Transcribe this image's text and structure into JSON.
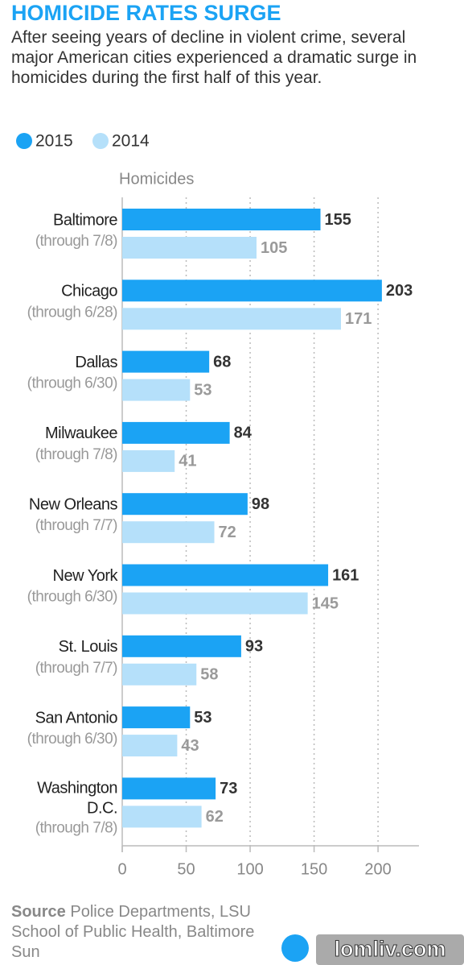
{
  "header": {
    "title": "HOMICIDE RATES SURGE",
    "subtitle": "After seeing years of decline in violent crime, several major American cities experienced a dramatic surge in homicides during the first half of this year."
  },
  "chart_data": {
    "type": "hbar",
    "x_label": "Homicides",
    "categories": [
      "Baltimore",
      "Chicago",
      "Dallas",
      "Milwaukee",
      "New Orleans",
      "New York",
      "St. Louis",
      "San Antonio",
      "Washington D.C."
    ],
    "category_notes": [
      "(through 7/8)",
      "(through 6/28)",
      "(through 6/30)",
      "(through 7/8)",
      "(through 7/7)",
      "(through 6/30)",
      "(through 7/7)",
      "(through 6/30)",
      "(through 7/8)"
    ],
    "series": [
      {
        "name": "2015",
        "color": "#1ba3f4",
        "label_color": "#333333",
        "values": [
          155,
          203,
          68,
          84,
          98,
          161,
          93,
          53,
          73
        ]
      },
      {
        "name": "2014",
        "color": "#b5e0fa",
        "label_color": "#9a9a9a",
        "values": [
          105,
          171,
          53,
          41,
          72,
          145,
          58,
          43,
          62
        ]
      }
    ],
    "xlim": [
      0,
      232
    ],
    "xticks": [
      0,
      50,
      100,
      150,
      200
    ],
    "grid": true,
    "legend": "top-left"
  },
  "footer": {
    "source_label": "Source",
    "source_text": "Police Departments, LSU School of Public Health, Baltimore Sun",
    "watermark": "lomliv.com"
  }
}
